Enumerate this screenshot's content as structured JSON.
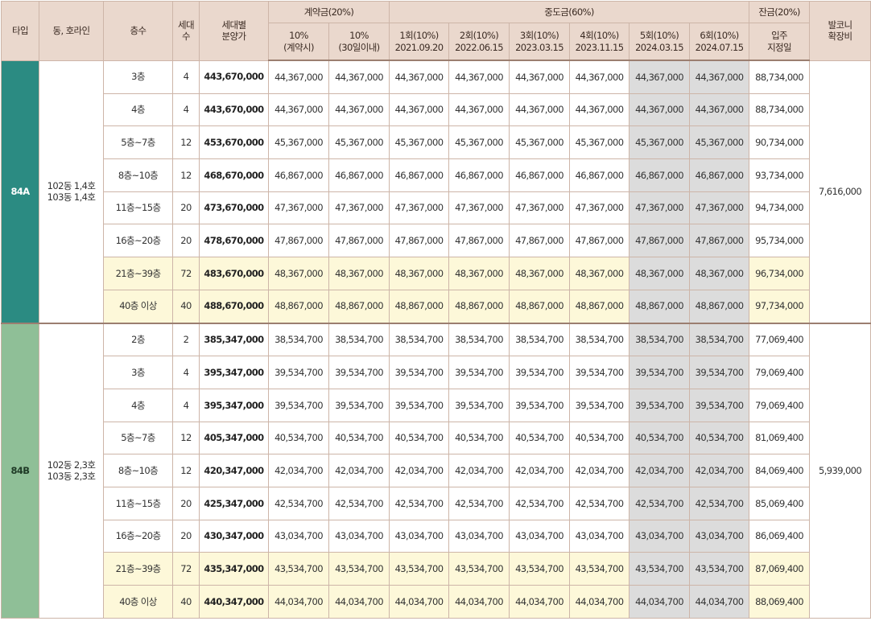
{
  "header": {
    "row1": [
      "타입",
      "동, 호라인",
      "층수",
      "세대\n수",
      "세대별\n분양가",
      "계약금(20%)",
      "중도금(60%)",
      "잔금(20%)",
      "발코니\n확장비"
    ],
    "row2": [
      "10%\n(계약시)",
      "10%\n(30일이내)",
      "1회(10%)\n2021.09.20",
      "2회(10%)\n2022.06.15",
      "3회(10%)\n2023.03.15",
      "4회(10%)\n2023.11.15",
      "5회(10%)\n2024.03.15",
      "6회(10%)\n2024.07.15",
      "입주\n지정일"
    ]
  },
  "table": {
    "groups": [
      {
        "type": "84A",
        "dong": "102동 1,4호\n103동 1,4호",
        "balcony": "7,616,000",
        "rows": [
          [
            "3층",
            "4",
            "443,670,000",
            "44,367,000",
            "44,367,000",
            "44,367,000",
            "44,367,000",
            "44,367,000",
            "44,367,000",
            "44,367,000",
            "44,367,000",
            "88,734,000"
          ],
          [
            "4층",
            "4",
            "443,670,000",
            "44,367,000",
            "44,367,000",
            "44,367,000",
            "44,367,000",
            "44,367,000",
            "44,367,000",
            "44,367,000",
            "44,367,000",
            "88,734,000"
          ],
          [
            "5층~7층",
            "12",
            "453,670,000",
            "45,367,000",
            "45,367,000",
            "45,367,000",
            "45,367,000",
            "45,367,000",
            "45,367,000",
            "45,367,000",
            "45,367,000",
            "90,734,000"
          ],
          [
            "8층~10층",
            "12",
            "468,670,000",
            "46,867,000",
            "46,867,000",
            "46,867,000",
            "46,867,000",
            "46,867,000",
            "46,867,000",
            "46,867,000",
            "46,867,000",
            "93,734,000"
          ],
          [
            "11층~15층",
            "20",
            "473,670,000",
            "47,367,000",
            "47,367,000",
            "47,367,000",
            "47,367,000",
            "47,367,000",
            "47,367,000",
            "47,367,000",
            "47,367,000",
            "94,734,000"
          ],
          [
            "16층~20층",
            "20",
            "478,670,000",
            "47,867,000",
            "47,867,000",
            "47,867,000",
            "47,867,000",
            "47,867,000",
            "47,867,000",
            "47,867,000",
            "47,867,000",
            "95,734,000"
          ],
          [
            "21층~39층",
            "72",
            "483,670,000",
            "48,367,000",
            "48,367,000",
            "48,367,000",
            "48,367,000",
            "48,367,000",
            "48,367,000",
            "48,367,000",
            "48,367,000",
            "96,734,000"
          ],
          [
            "40층 이상",
            "40",
            "488,670,000",
            "48,867,000",
            "48,867,000",
            "48,867,000",
            "48,867,000",
            "48,867,000",
            "48,867,000",
            "48,867,000",
            "48,867,000",
            "97,734,000"
          ]
        ]
      },
      {
        "type": "84B",
        "dong": "102동 2,3호\n103동 2,3호",
        "balcony": "5,939,000",
        "rows": [
          [
            "2층",
            "2",
            "385,347,000",
            "38,534,700",
            "38,534,700",
            "38,534,700",
            "38,534,700",
            "38,534,700",
            "38,534,700",
            "38,534,700",
            "38,534,700",
            "77,069,400"
          ],
          [
            "3층",
            "4",
            "395,347,000",
            "39,534,700",
            "39,534,700",
            "39,534,700",
            "39,534,700",
            "39,534,700",
            "39,534,700",
            "39,534,700",
            "39,534,700",
            "79,069,400"
          ],
          [
            "4층",
            "4",
            "395,347,000",
            "39,534,700",
            "39,534,700",
            "39,534,700",
            "39,534,700",
            "39,534,700",
            "39,534,700",
            "39,534,700",
            "39,534,700",
            "79,069,400"
          ],
          [
            "5층~7층",
            "12",
            "405,347,000",
            "40,534,700",
            "40,534,700",
            "40,534,700",
            "40,534,700",
            "40,534,700",
            "40,534,700",
            "40,534,700",
            "40,534,700",
            "81,069,400"
          ],
          [
            "8층~10층",
            "12",
            "420,347,000",
            "42,034,700",
            "42,034,700",
            "42,034,700",
            "42,034,700",
            "42,034,700",
            "42,034,700",
            "42,034,700",
            "42,034,700",
            "84,069,400"
          ],
          [
            "11층~15층",
            "20",
            "425,347,000",
            "42,534,700",
            "42,534,700",
            "42,534,700",
            "42,534,700",
            "42,534,700",
            "42,534,700",
            "42,534,700",
            "42,534,700",
            "85,069,400"
          ],
          [
            "16층~20층",
            "20",
            "430,347,000",
            "43,034,700",
            "43,034,700",
            "43,034,700",
            "43,034,700",
            "43,034,700",
            "43,034,700",
            "43,034,700",
            "43,034,700",
            "86,069,400"
          ],
          [
            "21층~39층",
            "72",
            "435,347,000",
            "43,534,700",
            "43,534,700",
            "43,534,700",
            "43,534,700",
            "43,534,700",
            "43,534,700",
            "43,534,700",
            "43,534,700",
            "87,069,400"
          ],
          [
            "40층 이상",
            "40",
            "440,347,000",
            "44,034,700",
            "44,034,700",
            "44,034,700",
            "44,034,700",
            "44,034,700",
            "44,034,700",
            "44,034,700",
            "44,034,700",
            "88,069,400"
          ]
        ]
      }
    ]
  }
}
